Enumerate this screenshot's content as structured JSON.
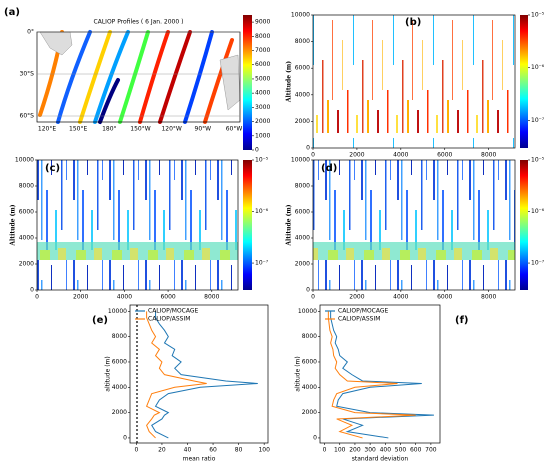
{
  "chart_data": [
    {
      "type": "map",
      "label": "(a)",
      "title": "CALIOP Profiles ( 6 Jan. 2000 )",
      "lon_labels": [
        "120°E",
        "150°E",
        "180°",
        "150°W",
        "120°W",
        "90°W",
        "60°W"
      ],
      "lat_labels": [
        "0°",
        "30°S",
        "60°S"
      ],
      "clim": [
        0,
        9500
      ],
      "cticks": [
        0,
        1000,
        2000,
        3000,
        4000,
        5000,
        6000,
        7000,
        8000,
        9000
      ]
    },
    {
      "type": "heatmap",
      "label": "(b)",
      "ylabel": "Altitude (m)",
      "xlim": [
        0,
        9200
      ],
      "xticks": [
        0,
        2000,
        4000,
        6000,
        8000
      ],
      "ylim": [
        0,
        10000
      ],
      "yticks": [
        0,
        2000,
        4000,
        6000,
        8000,
        10000
      ],
      "clog": true,
      "clim": [
        3e-08,
        1e-05
      ],
      "cticks": [
        {
          "value": 1e-05,
          "label": "10⁻⁵"
        },
        {
          "value": 1e-06,
          "label": "10⁻⁶"
        },
        {
          "value": 1e-07,
          "label": "10⁻⁷"
        }
      ]
    },
    {
      "type": "heatmap",
      "label": "(c)",
      "ylabel": "Altitude (m)",
      "xlim": [
        0,
        9200
      ],
      "xticks": [
        0,
        2000,
        4000,
        6000,
        8000
      ],
      "ylim": [
        0,
        10000
      ],
      "yticks": [
        0,
        2000,
        4000,
        6000,
        8000,
        10000
      ],
      "clog": true,
      "clim": [
        3e-08,
        1e-05
      ],
      "cticks": [
        {
          "value": 1e-05,
          "label": "10⁻⁵"
        },
        {
          "value": 1e-06,
          "label": "10⁻⁶"
        },
        {
          "value": 1e-07,
          "label": "10⁻⁷"
        }
      ]
    },
    {
      "type": "heatmap",
      "label": "(d)",
      "ylabel": "Altitude (m)",
      "xlim": [
        0,
        9200
      ],
      "xticks": [
        0,
        2000,
        4000,
        6000,
        8000
      ],
      "ylim": [
        0,
        10000
      ],
      "yticks": [
        0,
        2000,
        4000,
        6000,
        8000,
        10000
      ],
      "clog": true,
      "clim": [
        3e-08,
        1e-05
      ],
      "cticks": [
        {
          "value": 1e-05,
          "label": "10⁻⁵"
        },
        {
          "value": 1e-06,
          "label": "10⁻⁶"
        },
        {
          "value": 1e-07,
          "label": "10⁻⁷"
        }
      ]
    },
    {
      "type": "line",
      "label": "(e)",
      "xlabel": "mean ratio",
      "ylabel": "altitude (m)",
      "xlim": [
        -5,
        103
      ],
      "xticks": [
        0,
        20,
        40,
        60,
        80,
        100
      ],
      "ylim": [
        -400,
        10500
      ],
      "yticks": [
        0,
        2000,
        4000,
        6000,
        8000,
        10000
      ],
      "y": [
        0,
        500,
        1000,
        1500,
        1800,
        2000,
        2500,
        3000,
        3500,
        4000,
        4300,
        4500,
        5000,
        5500,
        6000,
        6500,
        7000,
        7500,
        8000,
        8500,
        9000,
        9500,
        10000
      ],
      "series": [
        {
          "name": "CALIOP/MOCAGE",
          "color": "#1f77b4",
          "values": [
            25,
            15,
            12,
            20,
            22,
            25,
            15,
            18,
            25,
            50,
            95,
            70,
            35,
            30,
            35,
            28,
            30,
            22,
            25,
            22,
            18,
            15,
            15
          ]
        },
        {
          "name": "CALIOP/ASSIM",
          "color": "#ff7f0e",
          "values": [
            15,
            10,
            8,
            12,
            14,
            18,
            8,
            10,
            12,
            30,
            55,
            45,
            22,
            18,
            20,
            15,
            18,
            12,
            15,
            12,
            10,
            8,
            8
          ]
        }
      ]
    },
    {
      "type": "line",
      "label": "(f)",
      "xlabel": "standard deviation",
      "ylabel": "altitude (m)",
      "xlim": [
        -30,
        760
      ],
      "xticks": [
        0,
        100,
        200,
        300,
        400,
        500,
        600,
        700
      ],
      "ylim": [
        -400,
        10500
      ],
      "yticks": [
        0,
        2000,
        4000,
        6000,
        8000,
        10000
      ],
      "y": [
        0,
        500,
        1000,
        1500,
        1800,
        2000,
        2500,
        3000,
        3500,
        4000,
        4300,
        4500,
        5000,
        5500,
        6000,
        6500,
        7000,
        7500,
        8000,
        8500,
        9000,
        9500,
        10000
      ],
      "series": [
        {
          "name": "CALIOP/MOCAGE",
          "color": "#1f77b4",
          "values": [
            420,
            150,
            250,
            120,
            720,
            300,
            80,
            90,
            120,
            300,
            640,
            250,
            180,
            120,
            150,
            100,
            90,
            70,
            80,
            60,
            50,
            40,
            40
          ]
        },
        {
          "name": "CALIOP/ASSIM",
          "color": "#ff7f0e",
          "values": [
            250,
            100,
            180,
            80,
            600,
            200,
            50,
            60,
            80,
            200,
            480,
            150,
            100,
            70,
            80,
            60,
            55,
            40,
            50,
            35,
            30,
            25,
            25
          ]
        }
      ]
    }
  ]
}
